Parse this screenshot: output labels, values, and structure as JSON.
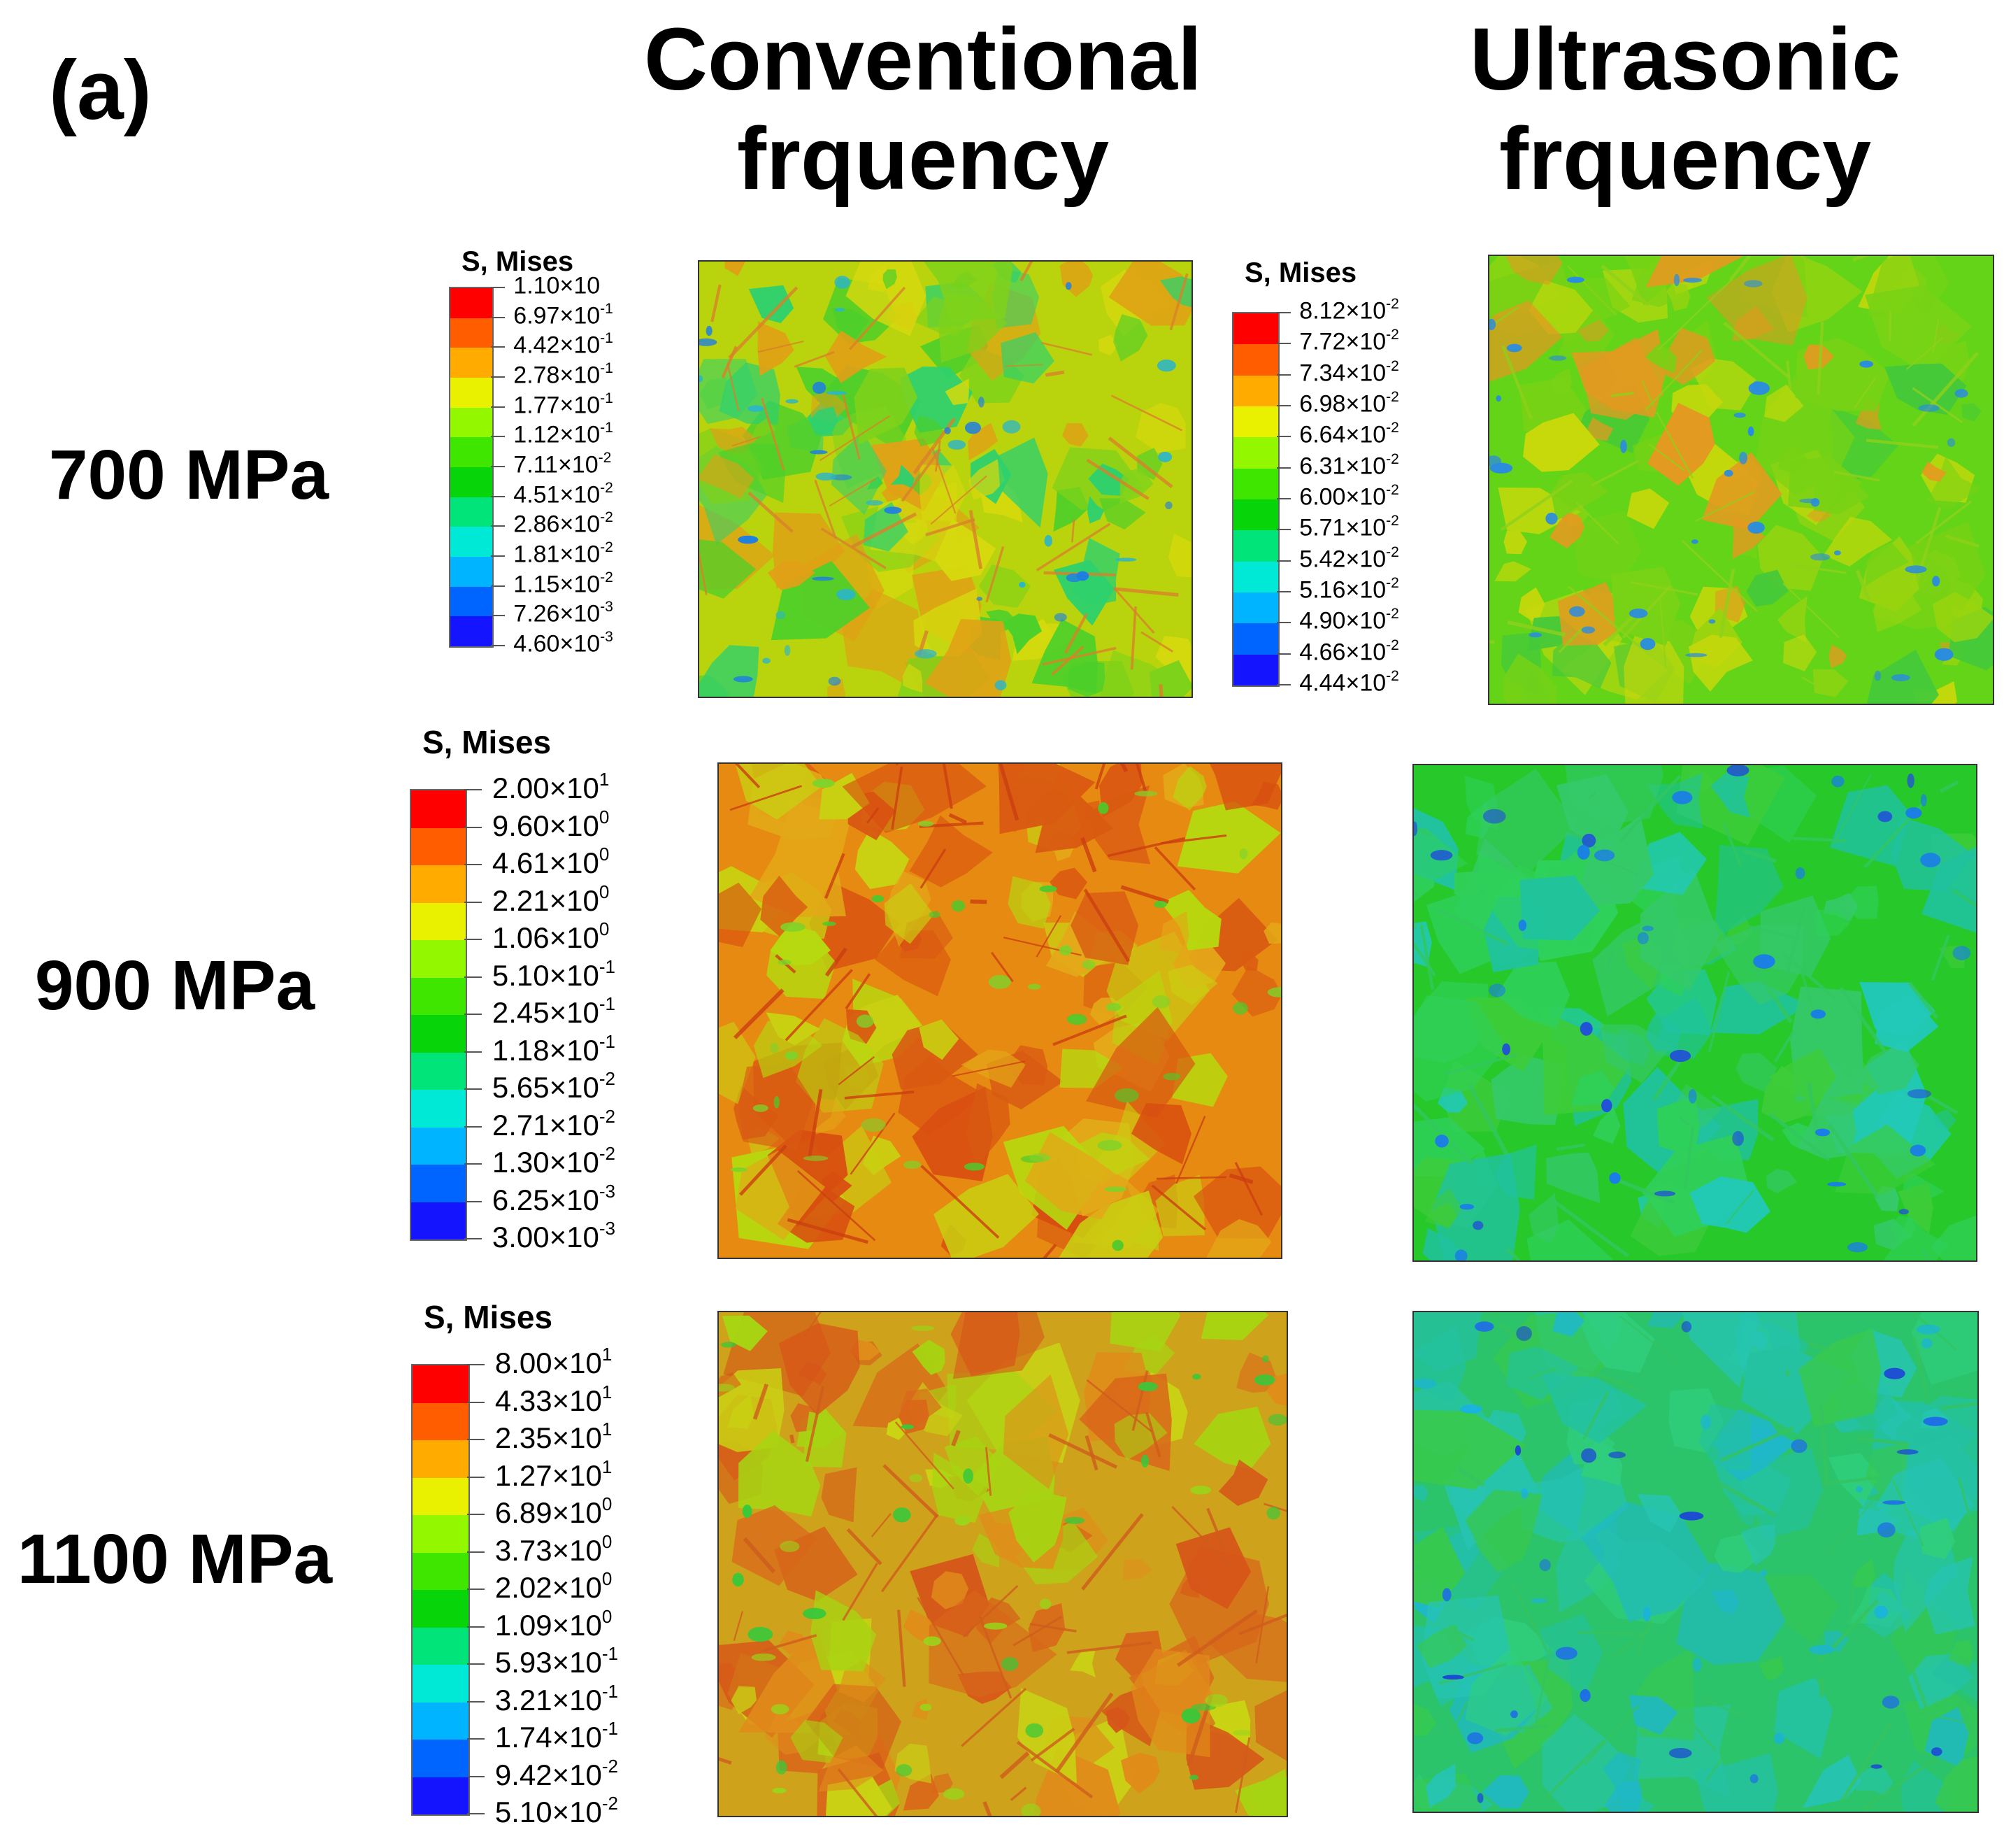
{
  "figure": {
    "panel_label": "(a)",
    "columns": [
      {
        "line1": "Conventional",
        "line2": "frquency"
      },
      {
        "line1": "Ultrasonic",
        "line2": "frquency"
      }
    ],
    "rows": [
      {
        "label": "700 MPa",
        "legends": [
          {
            "title": "S, Mises",
            "values": [
              [
                "1.10×10",
                ""
              ],
              [
                "6.97×10",
                "-1"
              ],
              [
                "4.42×10",
                "-1"
              ],
              [
                "2.78×10",
                "-1"
              ],
              [
                "1.77×10",
                "-1"
              ],
              [
                "1.12×10",
                "-1"
              ],
              [
                "7.11×10",
                "-2"
              ],
              [
                "4.51×10",
                "-2"
              ],
              [
                "2.86×10",
                "-2"
              ],
              [
                "1.81×10",
                "-2"
              ],
              [
                "1.15×10",
                "-2"
              ],
              [
                "7.26×10",
                "-3"
              ],
              [
                "4.60×10",
                "-3"
              ]
            ]
          },
          {
            "title": "S, Mises",
            "values": [
              [
                "8.12×10",
                "-2"
              ],
              [
                "7.72×10",
                "-2"
              ],
              [
                "7.34×10",
                "-2"
              ],
              [
                "6.98×10",
                "-2"
              ],
              [
                "6.64×10",
                "-2"
              ],
              [
                "6.31×10",
                "-2"
              ],
              [
                "6.00×10",
                "-2"
              ],
              [
                "5.71×10",
                "-2"
              ],
              [
                "5.42×10",
                "-2"
              ],
              [
                "5.16×10",
                "-2"
              ],
              [
                "4.90×10",
                "-2"
              ],
              [
                "4.66×10",
                "-2"
              ],
              [
                "4.44×10",
                "-2"
              ]
            ]
          }
        ],
        "maps": [
          {
            "frequency": "conventional",
            "dominant_color": "#b9d40c"
          },
          {
            "frequency": "ultrasonic",
            "dominant_color": "#63d418"
          }
        ]
      },
      {
        "label": "900 MPa",
        "legends": [
          {
            "title": "S, Mises",
            "values": [
              [
                "2.00×10",
                "1"
              ],
              [
                "9.60×10",
                "0"
              ],
              [
                "4.61×10",
                "0"
              ],
              [
                "2.21×10",
                "0"
              ],
              [
                "1.06×10",
                "0"
              ],
              [
                "5.10×10",
                "-1"
              ],
              [
                "2.45×10",
                "-1"
              ],
              [
                "1.18×10",
                "-1"
              ],
              [
                "5.65×10",
                "-2"
              ],
              [
                "2.71×10",
                "-2"
              ],
              [
                "1.30×10",
                "-2"
              ],
              [
                "6.25×10",
                "-3"
              ],
              [
                "3.00×10",
                "-3"
              ]
            ]
          }
        ],
        "maps": [
          {
            "frequency": "conventional",
            "dominant_color": "#e68a12"
          },
          {
            "frequency": "ultrasonic",
            "dominant_color": "#27c92a"
          }
        ]
      },
      {
        "label": "1100 MPa",
        "legends": [
          {
            "title": "S, Mises",
            "values": [
              [
                "8.00×10",
                "1"
              ],
              [
                "4.33×10",
                "1"
              ],
              [
                "2.35×10",
                "1"
              ],
              [
                "1.27×10",
                "1"
              ],
              [
                "6.89×10",
                "0"
              ],
              [
                "3.73×10",
                "0"
              ],
              [
                "2.02×10",
                "0"
              ],
              [
                "1.09×10",
                "0"
              ],
              [
                "5.93×10",
                "-1"
              ],
              [
                "3.21×10",
                "-1"
              ],
              [
                "1.74×10",
                "-1"
              ],
              [
                "9.42×10",
                "-2"
              ],
              [
                "5.10×10",
                "-2"
              ]
            ]
          }
        ],
        "maps": [
          {
            "frequency": "conventional",
            "dominant_color": "#cfa21c"
          },
          {
            "frequency": "ultrasonic",
            "dominant_color": "#2bc46a"
          }
        ]
      }
    ],
    "colorbar_colors": [
      "#ff0000",
      "#ff5d00",
      "#ffab00",
      "#e9f000",
      "#93f700",
      "#3ee600",
      "#08d40a",
      "#00e47a",
      "#00e8d6",
      "#00b4ff",
      "#0064ff",
      "#1414ff"
    ]
  }
}
